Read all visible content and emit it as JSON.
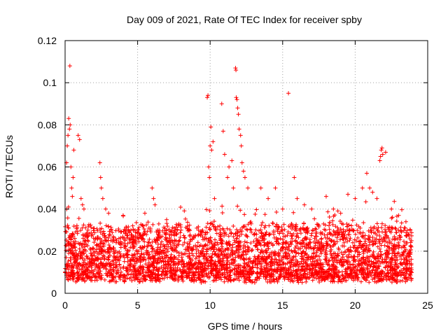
{
  "chart_data": {
    "type": "scatter",
    "title": "Day 009 of 2021, Rate Of TEC Index for receiver spby",
    "xlabel": "GPS time / hours",
    "ylabel": "ROTI / TECUs",
    "xlim": [
      0,
      25
    ],
    "ylim": [
      0,
      0.12
    ],
    "grid": true,
    "xticks": [
      0,
      5,
      10,
      15,
      20,
      25
    ],
    "yticks": [
      0,
      0.02,
      0.04,
      0.06,
      0.08,
      0.1,
      0.12
    ],
    "xtick_labels": [
      "0",
      "5",
      "10",
      "15",
      "20",
      "25"
    ],
    "ytick_labels": [
      "0",
      "0.02",
      "0.04",
      "0.06",
      "0.08",
      "0.1",
      "0.12"
    ],
    "marker": "+",
    "color": "#ff0000",
    "series": [
      {
        "name": "ROTI",
        "x_range": [
          0,
          23.9
        ],
        "typical_range": [
          0.005,
          0.03
        ],
        "outliers": [
          [
            0.1,
            0.062
          ],
          [
            0.15,
            0.07
          ],
          [
            0.2,
            0.075
          ],
          [
            0.25,
            0.083
          ],
          [
            0.3,
            0.078
          ],
          [
            0.35,
            0.08
          ],
          [
            0.33,
            0.108
          ],
          [
            0.4,
            0.06
          ],
          [
            0.45,
            0.05
          ],
          [
            0.5,
            0.046
          ],
          [
            0.55,
            0.055
          ],
          [
            0.6,
            0.068
          ],
          [
            0.9,
            0.075
          ],
          [
            1.0,
            0.073
          ],
          [
            1.1,
            0.045
          ],
          [
            1.2,
            0.042
          ],
          [
            1.3,
            0.04
          ],
          [
            2.4,
            0.062
          ],
          [
            2.45,
            0.055
          ],
          [
            2.5,
            0.05
          ],
          [
            2.6,
            0.045
          ],
          [
            2.8,
            0.04
          ],
          [
            3.0,
            0.038
          ],
          [
            4.0,
            0.037
          ],
          [
            5.5,
            0.038
          ],
          [
            6.0,
            0.05
          ],
          [
            6.1,
            0.045
          ],
          [
            6.2,
            0.042
          ],
          [
            7.0,
            0.035
          ],
          [
            8.0,
            0.03
          ],
          [
            9.8,
            0.093
          ],
          [
            9.85,
            0.094
          ],
          [
            10.0,
            0.07
          ],
          [
            10.05,
            0.079
          ],
          [
            10.1,
            0.068
          ],
          [
            10.2,
            0.072
          ],
          [
            9.9,
            0.06
          ],
          [
            9.95,
            0.055
          ],
          [
            10.3,
            0.045
          ],
          [
            10.8,
            0.09
          ],
          [
            10.9,
            0.077
          ],
          [
            11.0,
            0.066
          ],
          [
            11.2,
            0.055
          ],
          [
            11.3,
            0.06
          ],
          [
            11.5,
            0.063
          ],
          [
            11.6,
            0.05
          ],
          [
            11.75,
            0.107
          ],
          [
            11.78,
            0.106
          ],
          [
            11.8,
            0.093
          ],
          [
            11.85,
            0.092
          ],
          [
            11.9,
            0.088
          ],
          [
            11.95,
            0.085
          ],
          [
            12.0,
            0.078
          ],
          [
            12.1,
            0.075
          ],
          [
            12.15,
            0.07
          ],
          [
            12.2,
            0.062
          ],
          [
            12.3,
            0.058
          ],
          [
            12.4,
            0.055
          ],
          [
            12.6,
            0.05
          ],
          [
            13.5,
            0.05
          ],
          [
            14.0,
            0.045
          ],
          [
            14.5,
            0.05
          ],
          [
            15.0,
            0.04
          ],
          [
            15.4,
            0.095
          ],
          [
            15.8,
            0.055
          ],
          [
            16.0,
            0.045
          ],
          [
            16.5,
            0.042
          ],
          [
            17.0,
            0.04
          ],
          [
            18.0,
            0.046
          ],
          [
            18.5,
            0.04
          ],
          [
            19.0,
            0.038
          ],
          [
            19.5,
            0.047
          ],
          [
            20.0,
            0.045
          ],
          [
            20.5,
            0.05
          ],
          [
            20.8,
            0.057
          ],
          [
            21.0,
            0.05
          ],
          [
            21.2,
            0.048
          ],
          [
            21.5,
            0.045
          ],
          [
            21.7,
            0.063
          ],
          [
            21.75,
            0.065
          ],
          [
            21.8,
            0.068
          ],
          [
            21.85,
            0.069
          ],
          [
            21.9,
            0.066
          ],
          [
            22.1,
            0.067
          ],
          [
            22.5,
            0.04
          ],
          [
            23.0,
            0.037
          ],
          [
            23.5,
            0.034
          ],
          [
            23.8,
            0.03
          ]
        ]
      }
    ]
  }
}
